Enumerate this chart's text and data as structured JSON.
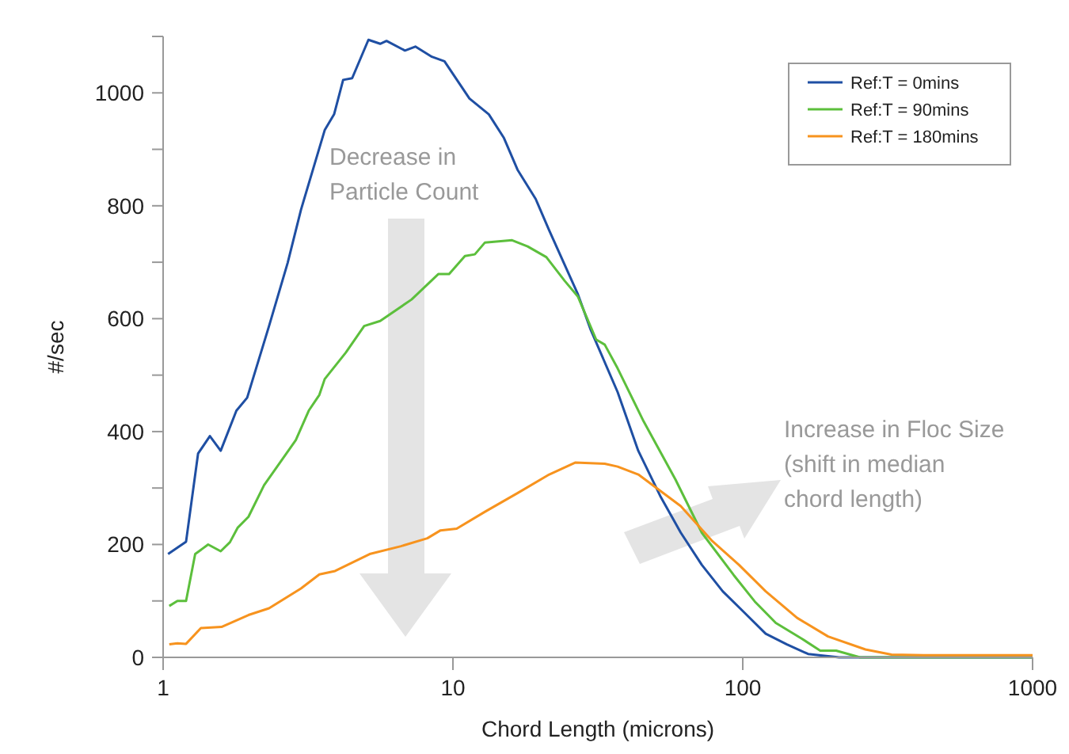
{
  "chart_data": {
    "type": "line",
    "xlabel": "Chord Length (microns)",
    "ylabel": "#/sec",
    "log": "x",
    "xlim": [
      1,
      1000
    ],
    "xticks": [
      1,
      10,
      100,
      1000
    ],
    "ylim": [
      0,
      1100
    ],
    "yticks": [
      0,
      {
        "value": 100,
        "label": null
      },
      200,
      {
        "value": 300,
        "label": null
      },
      400,
      {
        "value": 500,
        "label": null
      },
      600,
      {
        "value": 700,
        "label": null
      },
      800,
      {
        "value": 900,
        "label": null
      },
      1000,
      {
        "value": 1100,
        "label": null
      }
    ],
    "legend": "top right",
    "grid": false,
    "marker": "none",
    "line_style": "solid",
    "annotations": [
      "Decrease in\nParticle Count",
      "Increase in Floc Size\n(shift in median\nchord length)"
    ],
    "series": [
      {
        "name": "Ref:T = 0mins",
        "color": "#1f4fa3",
        "x": [
          1.04,
          1.2,
          1.32,
          1.45,
          1.58,
          1.79,
          1.95,
          2.32,
          2.69,
          2.99,
          3.39,
          3.61,
          3.89,
          4.18,
          4.49,
          5.11,
          5.61,
          5.9,
          6.83,
          7.42,
          8.46,
          9.35,
          11.4,
          13.3,
          15,
          16.7,
          19.3,
          21.5,
          27,
          29.9,
          37,
          43.6,
          51.9,
          61.1,
          72.2,
          85.3,
          101,
          120,
          142,
          168,
          215,
          1000
        ],
        "values": [
          183,
          205,
          361,
          392,
          366,
          437,
          460,
          587,
          699,
          793,
          887,
          934,
          962,
          1023,
          1026,
          1094,
          1087,
          1092,
          1075,
          1082,
          1064,
          1056,
          990,
          962,
          920,
          864,
          812,
          756,
          643,
          580,
          470,
          366,
          286,
          221,
          164,
          117,
          80,
          42,
          23,
          6,
          0,
          0
        ]
      },
      {
        "name": "Ref:T = 90mins",
        "color": "#5cbf3c",
        "x": [
          1.05,
          1.12,
          1.2,
          1.29,
          1.43,
          1.58,
          1.7,
          1.81,
          1.97,
          2.23,
          2.87,
          3.18,
          3.46,
          3.61,
          4.27,
          4.94,
          5.61,
          7.2,
          8.9,
          9.7,
          11,
          11.9,
          12.9,
          16,
          18.1,
          21,
          24.3,
          27,
          31.2,
          33.4,
          37,
          45.5,
          58.6,
          72.2,
          93,
          110,
          130,
          160,
          185,
          210,
          254,
          1000
        ],
        "values": [
          91,
          100,
          100,
          183,
          200,
          188,
          204,
          230,
          249,
          305,
          385,
          437,
          465,
          493,
          540,
          587,
          596,
          634,
          679,
          679,
          711,
          714,
          735,
          739,
          728,
          709,
          667,
          639,
          563,
          554,
          512,
          418,
          315,
          221,
          146,
          99,
          61,
          33,
          12,
          12,
          0,
          0
        ]
      },
      {
        "name": "Ref:T = 180mins",
        "color": "#f7931e",
        "x": [
          1.05,
          1.12,
          1.2,
          1.35,
          1.59,
          1.97,
          2.32,
          2.99,
          3.46,
          3.92,
          5.16,
          6.62,
          8.16,
          9.06,
          10.3,
          12.9,
          16.7,
          21.5,
          26.4,
          33.4,
          37,
          43.6,
          61.1,
          78.5,
          97,
          120,
          154,
          197,
          265,
          326,
          420,
          1000
        ],
        "values": [
          23,
          25,
          24,
          52,
          54,
          75,
          87,
          122,
          147,
          153,
          183,
          197,
          211,
          225,
          228,
          258,
          291,
          324,
          345,
          343,
          338,
          324,
          268,
          206,
          164,
          117,
          70,
          37,
          14,
          5,
          4,
          4
        ]
      }
    ]
  }
}
